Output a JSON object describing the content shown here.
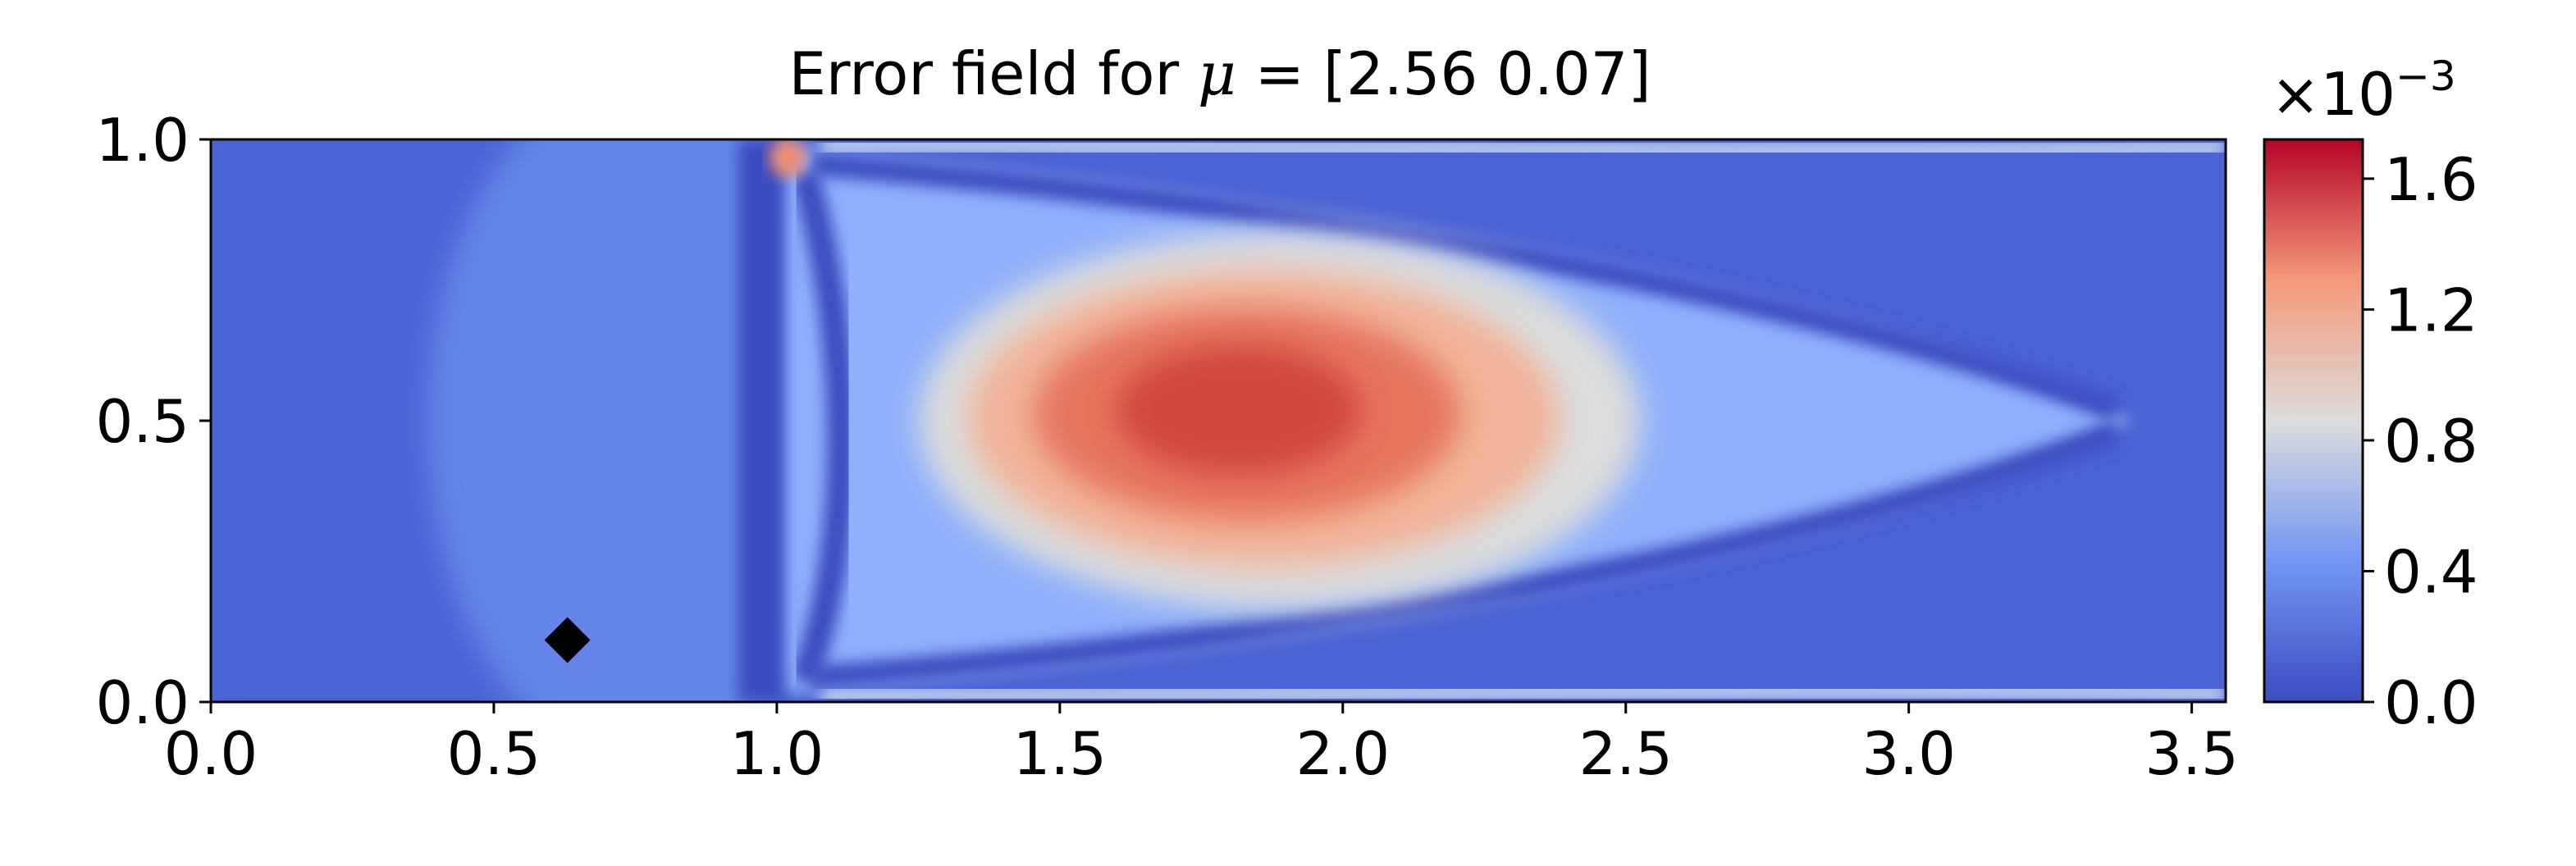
{
  "chart_data": {
    "type": "heatmap",
    "title_prefix": "Error field for ",
    "title_symbol": "μ",
    "title_suffix": " = [2.56 0.07]",
    "xlabel": "",
    "ylabel": "",
    "xlim": [
      0.0,
      3.56
    ],
    "ylim": [
      0.0,
      1.0
    ],
    "x_ticks": [
      "0.0",
      "0.5",
      "1.0",
      "1.5",
      "2.0",
      "2.5",
      "3.0",
      "3.5"
    ],
    "x_tick_values": [
      0.0,
      0.5,
      1.0,
      1.5,
      2.0,
      2.5,
      3.0,
      3.5
    ],
    "y_ticks": [
      "0.0",
      "0.5",
      "1.0"
    ],
    "y_tick_values": [
      0.0,
      0.5,
      1.0
    ],
    "colormap": "coolwarm",
    "colorbar": {
      "range": [
        0.0,
        1.72
      ],
      "ticks": [
        "0.0",
        "0.4",
        "0.8",
        "1.2",
        "1.6"
      ],
      "tick_values": [
        0.0,
        0.4,
        0.8,
        1.2,
        1.6
      ],
      "scale_label": "×10",
      "scale_exponent": "−3"
    },
    "marker": {
      "shape": "diamond",
      "color": "#000000",
      "x": 0.63,
      "y": 0.11
    },
    "field_description": "",
    "grid": false
  },
  "colors": {
    "low": "#3b4cc0",
    "mid": "#dddddd",
    "high": "#b40426"
  }
}
